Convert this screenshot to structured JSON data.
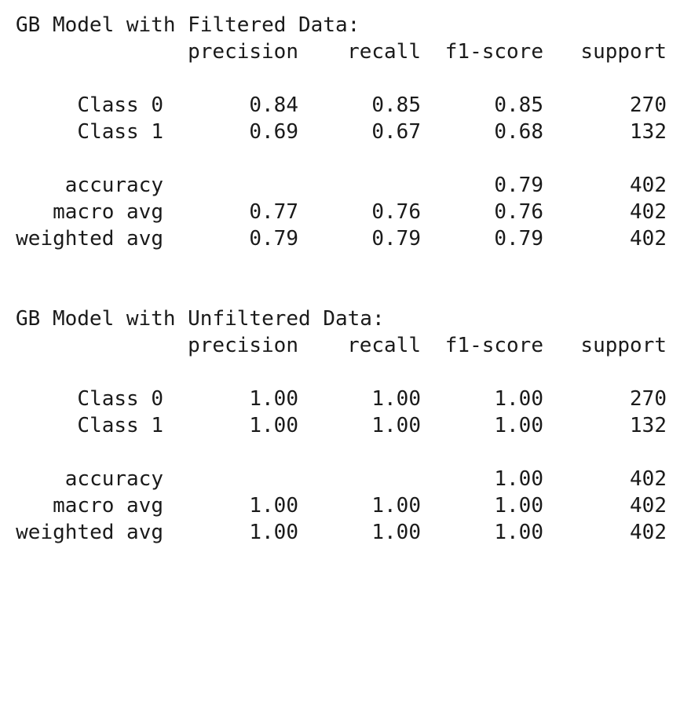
{
  "reports": [
    {
      "title": "GB Model with Filtered Data:",
      "headers": {
        "precision": "precision",
        "recall": "recall",
        "f1": "f1-score",
        "support": "support"
      },
      "rows": [
        {
          "label": "Class 0",
          "precision": "0.84",
          "recall": "0.85",
          "f1": "0.85",
          "support": "270"
        },
        {
          "label": "Class 1",
          "precision": "0.69",
          "recall": "0.67",
          "f1": "0.68",
          "support": "132"
        }
      ],
      "summary": [
        {
          "label": "accuracy",
          "precision": "",
          "recall": "",
          "f1": "0.79",
          "support": "402"
        },
        {
          "label": "macro avg",
          "precision": "0.77",
          "recall": "0.76",
          "f1": "0.76",
          "support": "402"
        },
        {
          "label": "weighted avg",
          "precision": "0.79",
          "recall": "0.79",
          "f1": "0.79",
          "support": "402"
        }
      ]
    },
    {
      "title": "GB Model with Unfiltered Data:",
      "headers": {
        "precision": "precision",
        "recall": "recall",
        "f1": "f1-score",
        "support": "support"
      },
      "rows": [
        {
          "label": "Class 0",
          "precision": "1.00",
          "recall": "1.00",
          "f1": "1.00",
          "support": "270"
        },
        {
          "label": "Class 1",
          "precision": "1.00",
          "recall": "1.00",
          "f1": "1.00",
          "support": "132"
        }
      ],
      "summary": [
        {
          "label": "accuracy",
          "precision": "",
          "recall": "",
          "f1": "1.00",
          "support": "402"
        },
        {
          "label": "macro avg",
          "precision": "1.00",
          "recall": "1.00",
          "f1": "1.00",
          "support": "402"
        },
        {
          "label": "weighted avg",
          "precision": "1.00",
          "recall": "1.00",
          "f1": "1.00",
          "support": "402"
        }
      ]
    }
  ]
}
